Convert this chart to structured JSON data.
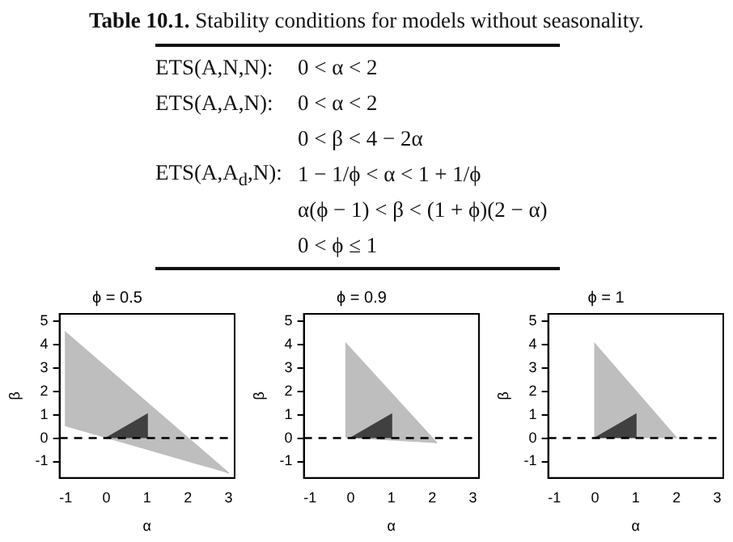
{
  "chart_data": [
    {
      "type": "other",
      "title": "Table 10.1.",
      "subtitle": "Stability conditions for models without seasonality.",
      "annotations": [
        "ETS(A,N,N):",
        "0 < α < 2",
        "ETS(A,A,N):",
        "0 < α < 2",
        "0 < β < 4 − 2α",
        "ETS(A,A$_{d}$,N):",
        "1 − 1/ϕ < α < 1 + 1/ϕ",
        "α(ϕ − 1) < β < (1 + ϕ)(2 − α)",
        "0 < ϕ ≤ 1"
      ]
    },
    {
      "type": "area",
      "title": "ϕ = 0.5",
      "xlabel": "α",
      "ylabel": "β",
      "xlim": [
        -1.15,
        3.15
      ],
      "ylim": [
        -1.7,
        5.3
      ],
      "xticks": [
        -1,
        0,
        1,
        2,
        3
      ],
      "yticks": [
        -1,
        0,
        1,
        2,
        3,
        4,
        5
      ],
      "grid": false,
      "legend": false,
      "series": [
        {
          "color": "#bebebe",
          "x": [
            -1,
            -1,
            3
          ],
          "values": [
            0.5,
            4.5,
            -1.5
          ]
        },
        {
          "color": "#404040",
          "x": [
            0,
            1,
            1
          ],
          "values": [
            0,
            1,
            0
          ]
        }
      ],
      "ref_lines": [
        {
          "axis": "y",
          "value": 0,
          "line_style": "dashed",
          "color": "#000000"
        }
      ]
    },
    {
      "type": "area",
      "title": "ϕ = 0.9",
      "xlabel": "α",
      "ylabel": "β",
      "xlim": [
        -1.15,
        3.15
      ],
      "ylim": [
        -1.7,
        5.3
      ],
      "xticks": [
        -1,
        0,
        1,
        2,
        3
      ],
      "yticks": [
        -1,
        0,
        1,
        2,
        3,
        4,
        5
      ],
      "grid": false,
      "legend": false,
      "series": [
        {
          "color": "#bebebe",
          "x": [
            -0.11,
            -0.11,
            2.11
          ],
          "values": [
            0.01,
            4.01,
            -0.21
          ]
        },
        {
          "color": "#404040",
          "x": [
            0,
            1,
            1
          ],
          "values": [
            0,
            1,
            0
          ]
        }
      ],
      "ref_lines": [
        {
          "axis": "y",
          "value": 0,
          "line_style": "dashed",
          "color": "#000000"
        }
      ]
    },
    {
      "type": "area",
      "title": "ϕ = 1",
      "xlabel": "α",
      "ylabel": "β",
      "xlim": [
        -1.15,
        3.15
      ],
      "ylim": [
        -1.7,
        5.3
      ],
      "xticks": [
        -1,
        0,
        1,
        2,
        3
      ],
      "yticks": [
        -1,
        0,
        1,
        2,
        3,
        4,
        5
      ],
      "grid": false,
      "legend": false,
      "series": [
        {
          "color": "#bebebe",
          "x": [
            0,
            0,
            2
          ],
          "values": [
            0,
            4,
            0
          ]
        },
        {
          "color": "#404040",
          "x": [
            0,
            1,
            1
          ],
          "values": [
            0,
            1,
            0
          ]
        }
      ],
      "ref_lines": [
        {
          "axis": "y",
          "value": 0,
          "line_style": "dashed",
          "color": "#000000"
        }
      ]
    }
  ]
}
